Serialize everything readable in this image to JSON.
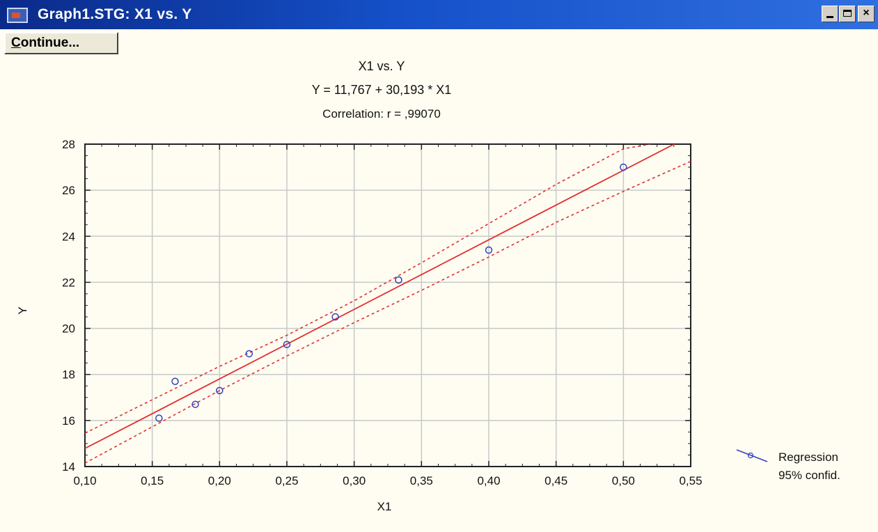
{
  "window": {
    "title": "Graph1.STG:  X1 vs. Y",
    "minimize_glyph": "-",
    "maximize_glyph": "□",
    "close_glyph": "×"
  },
  "toolbar": {
    "continue_first_letter": "C",
    "continue_rest": "ontinue..."
  },
  "colors": {
    "regression_line": "#e03030",
    "points": "#3340c0",
    "grid": "#c8c8c8",
    "titlebar": "#1550c8"
  },
  "chart_data": {
    "type": "scatter",
    "title": "X1 vs. Y",
    "equation": "Y = 11,767 + 30,193 * X1",
    "correlation": "Correlation: r = ,99070",
    "xlabel": "X1",
    "ylabel": "Y",
    "xlim": [
      0.1,
      0.55
    ],
    "ylim": [
      14,
      28
    ],
    "xticks": [
      0.1,
      0.15,
      0.2,
      0.25,
      0.3,
      0.35,
      0.4,
      0.45,
      0.5,
      0.55
    ],
    "xtick_labels": [
      "0,10",
      "0,15",
      "0,20",
      "0,25",
      "0,30",
      "0,35",
      "0,40",
      "0,45",
      "0,50",
      "0,55"
    ],
    "yticks": [
      14,
      16,
      18,
      20,
      22,
      24,
      26,
      28
    ],
    "ytick_labels": [
      "14",
      "16",
      "18",
      "20",
      "22",
      "24",
      "26",
      "28"
    ],
    "grid": true,
    "points": [
      {
        "x": 0.155,
        "y": 16.1
      },
      {
        "x": 0.167,
        "y": 17.7
      },
      {
        "x": 0.182,
        "y": 16.7
      },
      {
        "x": 0.2,
        "y": 17.3
      },
      {
        "x": 0.222,
        "y": 18.9
      },
      {
        "x": 0.25,
        "y": 19.3
      },
      {
        "x": 0.286,
        "y": 20.5
      },
      {
        "x": 0.333,
        "y": 22.1
      },
      {
        "x": 0.4,
        "y": 23.4
      },
      {
        "x": 0.5,
        "y": 27.0
      }
    ],
    "regression": {
      "intercept": 11.767,
      "slope": 30.193
    },
    "confidence_upper": [
      [
        0.1,
        15.45
      ],
      [
        0.2,
        18.35
      ],
      [
        0.25,
        19.7
      ],
      [
        0.3,
        21.2
      ],
      [
        0.35,
        22.85
      ],
      [
        0.4,
        24.55
      ],
      [
        0.45,
        26.25
      ],
      [
        0.5,
        27.8
      ],
      [
        0.52,
        28.0
      ]
    ],
    "confidence_lower": [
      [
        0.1,
        14.15
      ],
      [
        0.2,
        17.3
      ],
      [
        0.25,
        18.8
      ],
      [
        0.3,
        20.25
      ],
      [
        0.35,
        21.65
      ],
      [
        0.4,
        23.1
      ],
      [
        0.45,
        24.6
      ],
      [
        0.5,
        25.95
      ],
      [
        0.55,
        27.25
      ]
    ],
    "legend": {
      "position": "bottom-right",
      "entries": [
        "Regression",
        "95% confid."
      ]
    }
  }
}
